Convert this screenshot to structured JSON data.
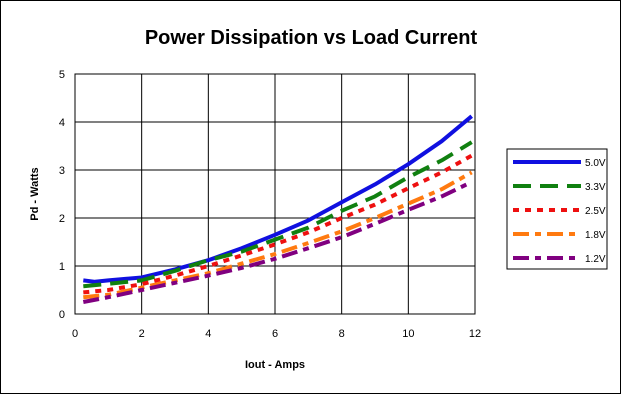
{
  "chart_data": {
    "type": "line",
    "title": "Power Dissipation vs Load Current",
    "xlabel": "Iout - Amps",
    "ylabel": "Pd - Watts",
    "xlim": [
      0,
      12
    ],
    "ylim": [
      0,
      5
    ],
    "xticks": [
      0,
      2,
      4,
      6,
      8,
      10,
      12
    ],
    "yticks": [
      0,
      1,
      2,
      3,
      4,
      5
    ],
    "grid": true,
    "legend_position": "right",
    "series": [
      {
        "name": "5.0V",
        "color": "#1010e0",
        "dash": "solid",
        "points": [
          [
            0.25,
            0.7
          ],
          [
            0.6,
            0.67
          ],
          [
            1,
            0.7
          ],
          [
            2,
            0.76
          ],
          [
            3,
            0.93
          ],
          [
            4,
            1.12
          ],
          [
            5,
            1.37
          ],
          [
            6,
            1.65
          ],
          [
            7,
            1.95
          ],
          [
            8,
            2.33
          ],
          [
            9,
            2.7
          ],
          [
            10,
            3.12
          ],
          [
            11,
            3.6
          ],
          [
            11.9,
            4.12
          ]
        ]
      },
      {
        "name": "3.3V",
        "color": "#108010",
        "dash": "long",
        "points": [
          [
            0.25,
            0.58
          ],
          [
            1,
            0.63
          ],
          [
            2,
            0.7
          ],
          [
            3,
            0.9
          ],
          [
            4,
            1.12
          ],
          [
            5,
            1.3
          ],
          [
            6,
            1.55
          ],
          [
            7,
            1.8
          ],
          [
            8,
            2.15
          ],
          [
            9,
            2.45
          ],
          [
            10,
            2.85
          ],
          [
            11,
            3.2
          ],
          [
            11.9,
            3.58
          ]
        ]
      },
      {
        "name": "2.5V",
        "color": "#ee1010",
        "dash": "short",
        "points": [
          [
            0.25,
            0.45
          ],
          [
            1,
            0.5
          ],
          [
            2,
            0.62
          ],
          [
            3,
            0.8
          ],
          [
            4,
            1.0
          ],
          [
            5,
            1.22
          ],
          [
            6,
            1.45
          ],
          [
            7,
            1.7
          ],
          [
            8,
            2.0
          ],
          [
            9,
            2.28
          ],
          [
            10,
            2.62
          ],
          [
            11,
            2.95
          ],
          [
            11.9,
            3.3
          ]
        ]
      },
      {
        "name": "1.8V",
        "color": "#ff7a10",
        "dash": "dashdot",
        "points": [
          [
            0.25,
            0.35
          ],
          [
            1,
            0.4
          ],
          [
            2,
            0.55
          ],
          [
            3,
            0.7
          ],
          [
            4,
            0.85
          ],
          [
            5,
            1.05
          ],
          [
            6,
            1.25
          ],
          [
            7,
            1.48
          ],
          [
            8,
            1.72
          ],
          [
            9,
            2.0
          ],
          [
            10,
            2.3
          ],
          [
            11,
            2.6
          ],
          [
            11.9,
            2.95
          ]
        ]
      },
      {
        "name": "1.2V",
        "color": "#800080",
        "dash": "dashdot",
        "points": [
          [
            0.25,
            0.25
          ],
          [
            1,
            0.35
          ],
          [
            2,
            0.5
          ],
          [
            3,
            0.65
          ],
          [
            4,
            0.8
          ],
          [
            5,
            0.96
          ],
          [
            6,
            1.15
          ],
          [
            7,
            1.37
          ],
          [
            8,
            1.6
          ],
          [
            9,
            1.88
          ],
          [
            10,
            2.17
          ],
          [
            11,
            2.45
          ],
          [
            11.9,
            2.75
          ]
        ]
      }
    ]
  }
}
